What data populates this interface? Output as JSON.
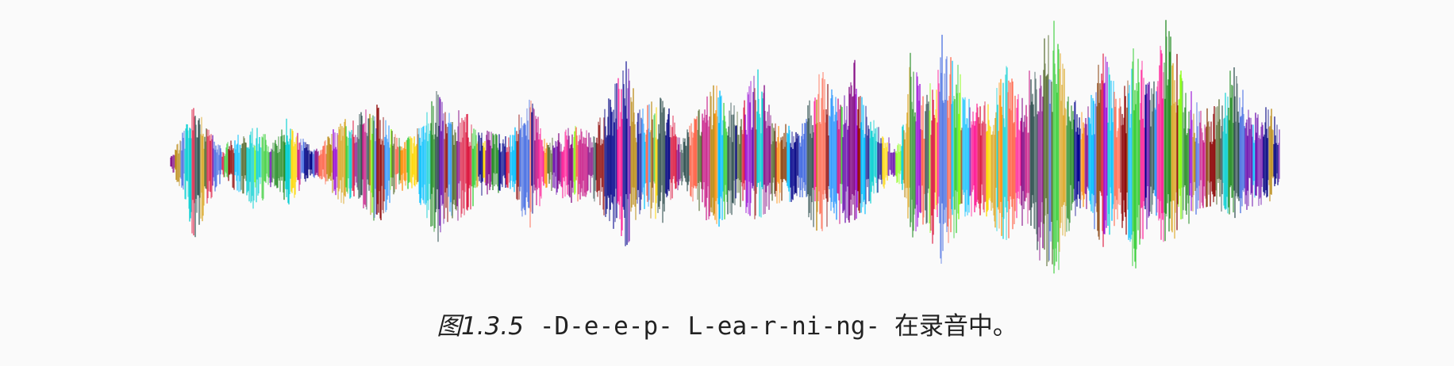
{
  "figure": {
    "caption_label": "图1.3.5",
    "caption_phonemes": "-D-e-e-p- L-ea-r-ni-ng-",
    "caption_tail": "在录音中。",
    "waveform": {
      "description": "audio-waveform",
      "palette": [
        "#6a0dad",
        "#00008b",
        "#8b0000",
        "#ff6347",
        "#32cd32",
        "#1e90ff",
        "#ff1493",
        "#daa520",
        "#2f4f4f",
        "#9400d3",
        "#00ced1",
        "#b8860b",
        "#8b4513",
        "#4169e1",
        "#dc143c",
        "#7fff00",
        "#ff8c00",
        "#00bfff",
        "#c71585",
        "#556b2f",
        "#ffd700",
        "#228b22",
        "#800080",
        "#000080"
      ]
    }
  }
}
